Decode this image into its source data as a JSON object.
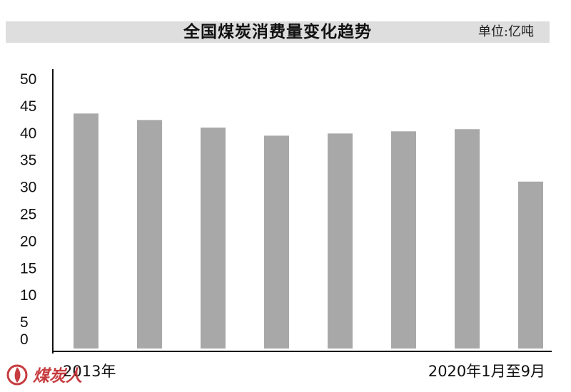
{
  "header": {
    "title": "全国煤炭消费量变化趋势",
    "unit": "单位:亿吨"
  },
  "logo": {
    "text": "煤炭人"
  },
  "colors": {
    "bar": "#a8a8a8",
    "axis": "#111111",
    "title_band": "#dedede",
    "logo": "#c0282c"
  },
  "chart_data": {
    "type": "bar",
    "title": "全国煤炭消费量变化趋势",
    "unit": "单位:亿吨",
    "x_start_label": "2013年",
    "x_end_label": "2020年1月至9月",
    "categories": [
      "2013年",
      "",
      "",
      "",
      "",
      "",
      "",
      "2020年1月至9月"
    ],
    "values": [
      43.5,
      42.3,
      40.9,
      39.4,
      39.8,
      40.2,
      40.6,
      30.9
    ],
    "ylim": [
      0,
      50
    ],
    "yticks": [
      0,
      5,
      10,
      15,
      20,
      25,
      30,
      35,
      40,
      45,
      50
    ],
    "grid": false,
    "legend": "none"
  }
}
